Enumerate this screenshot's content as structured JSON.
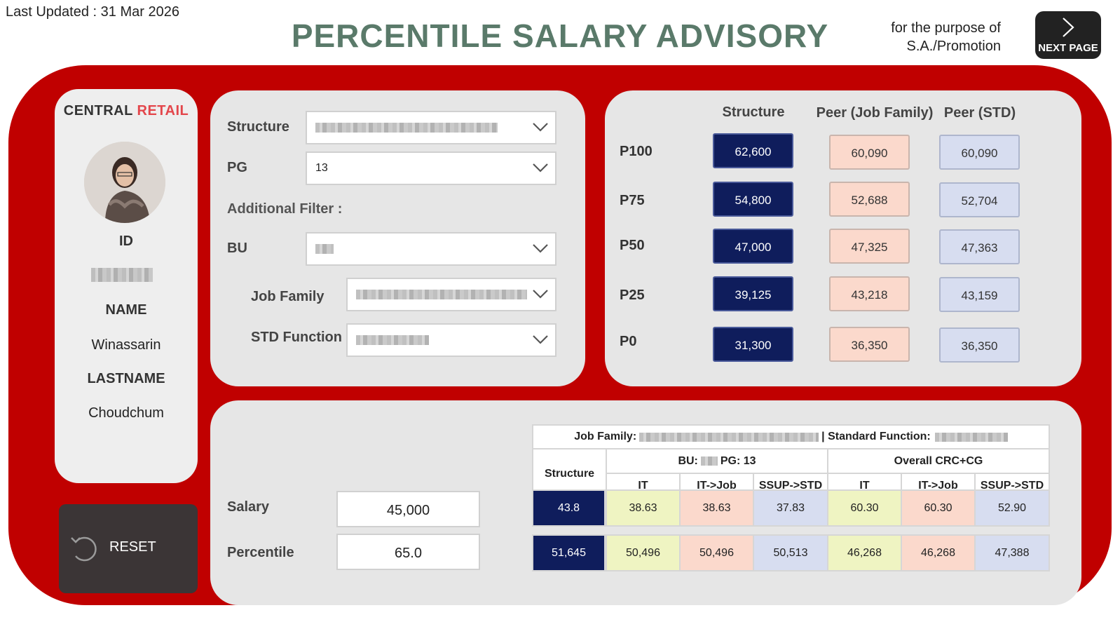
{
  "header": {
    "last_updated": "Last Updated : 31 Mar 2026",
    "title": "PERCENTILE SALARY ADVISORY",
    "purpose_line1": "for the purpose of",
    "purpose_line2": "S.A./Promotion",
    "next_page_label": "NEXT PAGE"
  },
  "profile": {
    "brand_part1": "CENTRAL ",
    "brand_part2": "RETAIL",
    "id_label": "ID",
    "name_label": "NAME",
    "name_value": "Winassarin",
    "lastname_label": "LASTNAME",
    "lastname_value": "Choudchum"
  },
  "reset": {
    "label": "RESET"
  },
  "filters": {
    "structure_label": "Structure",
    "pg_label": "PG",
    "pg_value": "13",
    "additional_filter_label": "Additional Filter :",
    "bu_label": "BU",
    "job_family_label": "Job Family",
    "std_function_label": "STD Function"
  },
  "percentiles": {
    "headers": [
      "Structure",
      "Peer (Job Family)",
      "Peer (STD)"
    ],
    "rows": [
      {
        "label": "P100",
        "structure": "62,600",
        "peer_job": "60,090",
        "peer_std": "60,090"
      },
      {
        "label": "P75",
        "structure": "54,800",
        "peer_job": "52,688",
        "peer_std": "52,704"
      },
      {
        "label": "P50",
        "structure": "47,000",
        "peer_job": "47,325",
        "peer_std": "47,363"
      },
      {
        "label": "P25",
        "structure": "39,125",
        "peer_job": "43,218",
        "peer_std": "43,159"
      },
      {
        "label": "P0",
        "structure": "31,300",
        "peer_job": "36,350",
        "peer_std": "36,350"
      }
    ]
  },
  "salary": {
    "salary_label": "Salary",
    "salary_value": "45,000",
    "percentile_label": "Percentile",
    "percentile_value": "65.0"
  },
  "comparison": {
    "job_family_prefix": "Job Family:",
    "std_function_prefix": "| Standard Function:",
    "structure_header": "Structure",
    "bu_prefix": "BU:",
    "pg_text": "PG: 13",
    "overall_header": "Overall CRC+CG",
    "sub_headers": [
      "IT",
      "IT->Job",
      "SSUP->STD",
      "IT",
      "IT->Job",
      "SSUP->STD"
    ],
    "row1": [
      "43.8",
      "38.63",
      "38.63",
      "37.83",
      "60.30",
      "60.30",
      "52.90"
    ],
    "row2": [
      "51,645",
      "50,496",
      "50,496",
      "50,513",
      "46,268",
      "46,268",
      "47,388"
    ]
  }
}
